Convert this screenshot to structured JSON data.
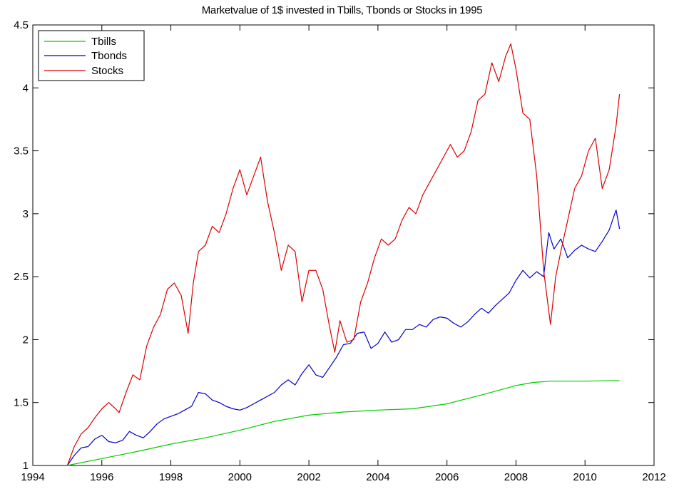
{
  "chart_data": {
    "type": "line",
    "title": "Marketvalue of 1$ invested in Tbills, Tbonds or Stocks in 1995",
    "xlabel": "",
    "ylabel": "",
    "xlim": [
      1994,
      2012
    ],
    "ylim": [
      1,
      4.5
    ],
    "xticks": [
      1994,
      1996,
      1998,
      2000,
      2002,
      2004,
      2006,
      2008,
      2010,
      2012
    ],
    "yticks": [
      1,
      1.5,
      2,
      2.5,
      3,
      3.5,
      4,
      4.5
    ],
    "xtick_labels": [
      "1994",
      "1996",
      "1998",
      "2000",
      "2002",
      "2004",
      "2006",
      "2008",
      "2010",
      "2012"
    ],
    "ytick_labels": [
      "1",
      "1.5",
      "2",
      "2.5",
      "3",
      "3.5",
      "4",
      "4.5"
    ],
    "grid": false,
    "legend_position": "top-left",
    "series": [
      {
        "name": "Tbills",
        "color": "#00cc00",
        "x": [
          1995.0,
          1996.0,
          1997.0,
          1998.0,
          1999.0,
          2000.0,
          2001.0,
          2002.0,
          2003.0,
          2004.0,
          2005.0,
          2006.0,
          2007.0,
          2008.0,
          2008.5,
          2009.0,
          2010.0,
          2011.0
        ],
        "y": [
          1.0,
          1.055,
          1.11,
          1.17,
          1.22,
          1.28,
          1.35,
          1.4,
          1.425,
          1.44,
          1.45,
          1.49,
          1.56,
          1.635,
          1.66,
          1.67,
          1.67,
          1.675
        ]
      },
      {
        "name": "Tbonds",
        "color": "#0000cc",
        "x": [
          1995.0,
          1995.2,
          1995.4,
          1995.6,
          1995.8,
          1996.0,
          1996.2,
          1996.4,
          1996.6,
          1996.8,
          1997.0,
          1997.2,
          1997.4,
          1997.6,
          1997.8,
          1998.0,
          1998.2,
          1998.4,
          1998.6,
          1998.8,
          1999.0,
          1999.2,
          1999.4,
          1999.6,
          1999.8,
          2000.0,
          2000.2,
          2000.4,
          2000.6,
          2000.8,
          2001.0,
          2001.2,
          2001.4,
          2001.6,
          2001.8,
          2002.0,
          2002.2,
          2002.4,
          2002.6,
          2002.8,
          2003.0,
          2003.2,
          2003.4,
          2003.6,
          2003.8,
          2004.0,
          2004.2,
          2004.4,
          2004.6,
          2004.8,
          2005.0,
          2005.2,
          2005.4,
          2005.6,
          2005.8,
          2006.0,
          2006.2,
          2006.4,
          2006.6,
          2006.8,
          2007.0,
          2007.2,
          2007.4,
          2007.6,
          2007.8,
          2008.0,
          2008.2,
          2008.4,
          2008.6,
          2008.8,
          2008.95,
          2009.1,
          2009.3,
          2009.5,
          2009.7,
          2009.9,
          2010.1,
          2010.3,
          2010.5,
          2010.7,
          2010.9,
          2011.0
        ],
        "y": [
          1.0,
          1.08,
          1.14,
          1.15,
          1.21,
          1.24,
          1.19,
          1.18,
          1.2,
          1.27,
          1.24,
          1.22,
          1.27,
          1.33,
          1.37,
          1.39,
          1.41,
          1.44,
          1.47,
          1.58,
          1.57,
          1.52,
          1.5,
          1.47,
          1.45,
          1.44,
          1.46,
          1.49,
          1.52,
          1.55,
          1.58,
          1.64,
          1.68,
          1.64,
          1.73,
          1.8,
          1.72,
          1.7,
          1.78,
          1.86,
          1.96,
          1.97,
          2.05,
          2.06,
          1.93,
          1.97,
          2.06,
          1.98,
          2.0,
          2.08,
          2.08,
          2.12,
          2.1,
          2.16,
          2.18,
          2.17,
          2.13,
          2.1,
          2.14,
          2.2,
          2.25,
          2.21,
          2.27,
          2.32,
          2.37,
          2.47,
          2.55,
          2.49,
          2.54,
          2.5,
          2.85,
          2.72,
          2.8,
          2.65,
          2.71,
          2.75,
          2.72,
          2.7,
          2.78,
          2.87,
          3.03,
          2.88
        ]
      },
      {
        "name": "Stocks",
        "color": "#dd0000",
        "x": [
          1995.0,
          1995.2,
          1995.4,
          1995.6,
          1995.8,
          1996.0,
          1996.2,
          1996.4,
          1996.5,
          1996.7,
          1996.9,
          1997.1,
          1997.3,
          1997.5,
          1997.7,
          1997.9,
          1998.1,
          1998.3,
          1998.5,
          1998.65,
          1998.8,
          1999.0,
          1999.2,
          1999.4,
          1999.6,
          1999.8,
          2000.0,
          2000.2,
          2000.4,
          2000.6,
          2000.8,
          2001.0,
          2001.2,
          2001.4,
          2001.6,
          2001.8,
          2002.0,
          2002.2,
          2002.4,
          2002.6,
          2002.75,
          2002.9,
          2003.1,
          2003.3,
          2003.5,
          2003.7,
          2003.9,
          2004.1,
          2004.3,
          2004.5,
          2004.7,
          2004.9,
          2005.1,
          2005.3,
          2005.5,
          2005.7,
          2005.9,
          2006.1,
          2006.3,
          2006.5,
          2006.7,
          2006.9,
          2007.1,
          2007.3,
          2007.5,
          2007.7,
          2007.85,
          2008.0,
          2008.2,
          2008.4,
          2008.6,
          2008.8,
          2009.0,
          2009.15,
          2009.3,
          2009.5,
          2009.7,
          2009.9,
          2010.1,
          2010.3,
          2010.5,
          2010.7,
          2010.9,
          2011.0
        ],
        "y": [
          1.0,
          1.15,
          1.25,
          1.3,
          1.38,
          1.45,
          1.5,
          1.45,
          1.42,
          1.58,
          1.72,
          1.68,
          1.95,
          2.1,
          2.2,
          2.4,
          2.45,
          2.35,
          2.05,
          2.45,
          2.7,
          2.75,
          2.9,
          2.85,
          3.0,
          3.2,
          3.35,
          3.15,
          3.3,
          3.45,
          3.1,
          2.85,
          2.55,
          2.75,
          2.7,
          2.3,
          2.55,
          2.55,
          2.4,
          2.1,
          1.9,
          2.15,
          1.98,
          2.0,
          2.3,
          2.45,
          2.65,
          2.8,
          2.75,
          2.8,
          2.95,
          3.05,
          3.0,
          3.15,
          3.25,
          3.35,
          3.45,
          3.55,
          3.45,
          3.5,
          3.65,
          3.9,
          3.95,
          4.2,
          4.05,
          4.25,
          4.35,
          4.15,
          3.8,
          3.75,
          3.3,
          2.55,
          2.12,
          2.5,
          2.7,
          2.95,
          3.2,
          3.3,
          3.5,
          3.6,
          3.2,
          3.35,
          3.7,
          3.95
        ]
      }
    ]
  }
}
